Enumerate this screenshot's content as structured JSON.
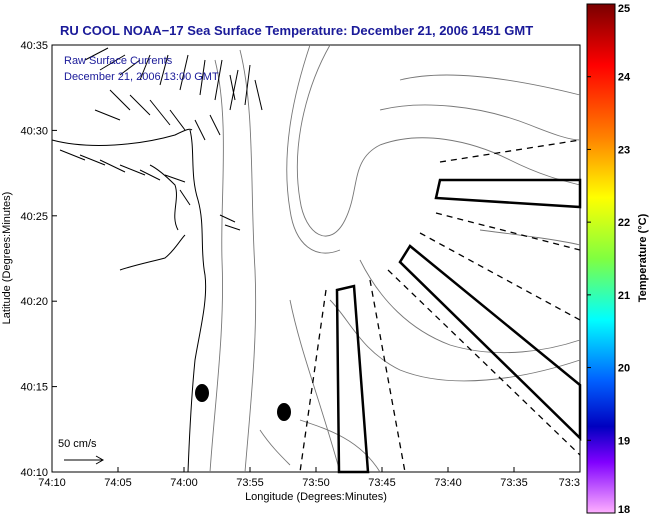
{
  "title": "RU COOL  NOAA−17  Sea Surface Temperature:  December 21, 2006 1451 GMT",
  "legend": {
    "line1": "Raw Surface Currents",
    "line2": "December 21, 2006 13:00 GMT"
  },
  "scale_arrow_label": "50 cm/s",
  "x_axis": {
    "label": "Longitude (Degrees:Minutes)",
    "ticks": [
      "74:10",
      "74:05",
      "74:00",
      "73:55",
      "73:50",
      "73:45",
      "73:40",
      "73:35",
      "73:3"
    ]
  },
  "y_axis": {
    "label": "Latitude (Degrees:Minutes)",
    "ticks": [
      "40:35",
      "40:30",
      "40:25",
      "40:20",
      "40:15",
      "40:10"
    ]
  },
  "colorbar": {
    "label": "Temperature (°C)",
    "ticks": [
      "25",
      "24",
      "23",
      "22",
      "21",
      "20",
      "19",
      "18"
    ],
    "colors": [
      "#7a0000",
      "#ff0000",
      "#ff8000",
      "#ffff00",
      "#80ff40",
      "#00ffff",
      "#0060ff",
      "#0000c0",
      "#8000ff",
      "#ff40ff"
    ]
  }
}
